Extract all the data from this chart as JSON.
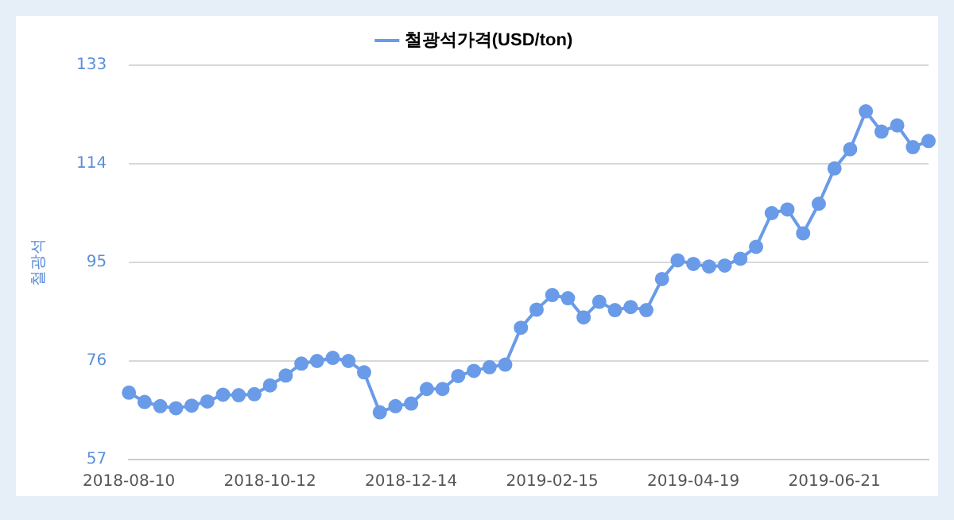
{
  "chart_data": {
    "type": "line",
    "ylabel": "철광석",
    "categories": [
      "2018-08-10",
      null,
      null,
      null,
      null,
      null,
      null,
      null,
      null,
      "2018-10-12",
      null,
      null,
      null,
      null,
      null,
      null,
      null,
      null,
      "2018-12-14",
      null,
      null,
      null,
      null,
      null,
      null,
      null,
      null,
      "2019-02-15",
      null,
      null,
      null,
      null,
      null,
      null,
      null,
      null,
      "2019-04-19",
      null,
      null,
      null,
      null,
      null,
      null,
      null,
      null,
      "2019-06-21",
      null,
      null,
      null,
      null,
      null,
      null
    ],
    "series": [
      {
        "name": "철광석가격(USD/ton)",
        "color": "#6a9be8",
        "values": [
          69.9,
          68.1,
          67.3,
          66.9,
          67.4,
          68.2,
          69.5,
          69.4,
          69.6,
          71.3,
          73.2,
          75.5,
          76.0,
          76.6,
          76.0,
          73.8,
          66.1,
          67.3,
          67.8,
          70.6,
          70.6,
          73.1,
          74.1,
          74.8,
          75.3,
          82.4,
          85.9,
          88.7,
          88.1,
          84.4,
          87.4,
          85.8,
          86.4,
          85.8,
          91.8,
          95.4,
          94.7,
          94.2,
          94.4,
          95.7,
          98.0,
          104.5,
          105.2,
          100.6,
          106.3,
          113.1,
          116.8,
          124.1,
          120.2,
          121.4,
          117.2,
          118.4
        ]
      }
    ],
    "ylim": [
      57,
      133
    ],
    "yticks": [
      57,
      76,
      95,
      114,
      133
    ],
    "grid": "y",
    "legend": "top",
    "marker": "circle",
    "line_style": "solid"
  }
}
